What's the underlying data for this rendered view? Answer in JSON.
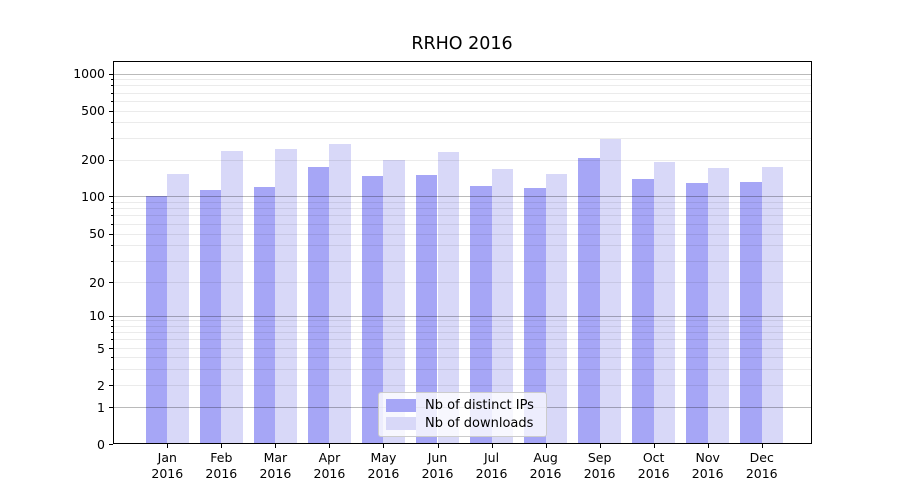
{
  "chart_data": {
    "type": "bar",
    "title": "RRHO 2016",
    "categories": [
      "Jan",
      "Feb",
      "Mar",
      "Apr",
      "May",
      "Jun",
      "Jul",
      "Aug",
      "Sep",
      "Oct",
      "Nov",
      "Dec"
    ],
    "category_year": "2016",
    "series": [
      {
        "name": "Nb of distinct IPs",
        "color": "#a6a6f6",
        "values": [
          100,
          112,
          118,
          175,
          147,
          150,
          120,
          116,
          205,
          139,
          127,
          131
        ]
      },
      {
        "name": "Nb of downloads",
        "color": "#d8d8f8",
        "values": [
          151,
          235,
          242,
          265,
          200,
          232,
          167,
          151,
          293,
          191,
          169,
          175
        ]
      }
    ],
    "yscale": "symlog",
    "y_ticks": [
      0,
      1,
      2,
      5,
      10,
      20,
      50,
      100,
      200,
      500,
      1000
    ],
    "y_minor_gridlines": [
      2,
      3,
      4,
      5,
      6,
      7,
      8,
      9,
      20,
      30,
      40,
      50,
      60,
      70,
      80,
      90,
      200,
      300,
      400,
      500,
      600,
      700,
      800,
      900
    ],
    "y_major_gridlines": [
      1,
      10,
      100,
      1000
    ],
    "ylim": [
      0,
      1280
    ],
    "grid": "both",
    "legend_position": "lower center"
  }
}
